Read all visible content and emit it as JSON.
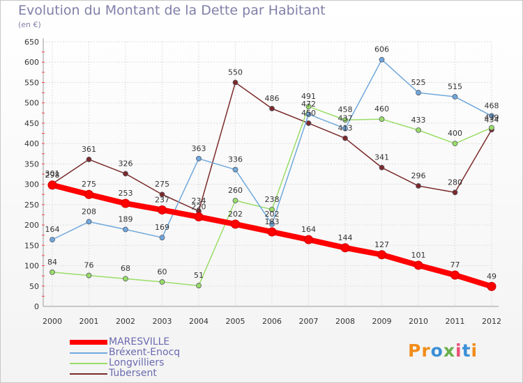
{
  "title": "Evolution du Montant de la Dette par Habitant",
  "subtitle": "(en €)",
  "logo": {
    "text": "Proxiti",
    "colors": [
      "#f28c1a",
      "#f28c1a",
      "#3a8fd6",
      "#6ab04c",
      "#e94e77",
      "#3a8fd6",
      "#f28c1a"
    ]
  },
  "chart_data": {
    "type": "line",
    "x": [
      2000,
      2001,
      2002,
      2003,
      2004,
      2005,
      2006,
      2007,
      2008,
      2009,
      2010,
      2011,
      2012
    ],
    "ylim": [
      0,
      650
    ],
    "yticks": [
      0,
      50,
      100,
      150,
      200,
      250,
      300,
      350,
      400,
      450,
      500,
      550,
      600,
      650
    ],
    "series": [
      {
        "name": "MARESVILLE",
        "color": "#ff0000",
        "values": [
          298,
          275,
          253,
          237,
          220,
          202,
          183,
          164,
          144,
          127,
          101,
          77,
          49
        ],
        "labels": [
          "298",
          "275",
          "253",
          "237",
          "220",
          "202",
          "183",
          "164",
          "144",
          "127",
          "101",
          "77",
          "49"
        ]
      },
      {
        "name": "Bréxent-Enocq",
        "color": "#6fa8dc",
        "values": [
          164,
          208,
          189,
          169,
          363,
          336,
          202,
          472,
          437,
          606,
          525,
          515,
          468
        ],
        "labels": [
          "164",
          "208",
          "189",
          "169",
          "363",
          "336",
          "202",
          "472",
          "437",
          "606",
          "525",
          "515",
          "468"
        ]
      },
      {
        "name": "Longvilliers",
        "color": "#99dd66",
        "values": [
          84,
          76,
          68,
          60,
          51,
          260,
          238,
          491,
          458,
          460,
          433,
          400,
          439
        ],
        "labels": [
          "84",
          "76",
          "68",
          "60",
          "51",
          "260",
          "238",
          "491",
          "458",
          "460",
          "433",
          "400",
          "439"
        ]
      },
      {
        "name": "Tubersent",
        "color": "#7b2a2a",
        "values": [
          301,
          361,
          326,
          275,
          234,
          550,
          486,
          450,
          413,
          341,
          296,
          280,
          434
        ],
        "labels": [
          "301",
          "361",
          "326",
          "275",
          "234",
          "550",
          "486",
          "450",
          "413",
          "341",
          "296",
          "280",
          "434"
        ]
      }
    ]
  }
}
